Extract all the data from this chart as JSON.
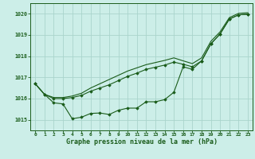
{
  "xlabel": "Graphe pression niveau de la mer (hPa)",
  "bg_color": "#cceee8",
  "grid_color": "#aad4cc",
  "line_color": "#1a5c1a",
  "xlim": [
    -0.5,
    23.5
  ],
  "ylim": [
    1014.5,
    1020.5
  ],
  "yticks": [
    1015,
    1016,
    1017,
    1018,
    1019,
    1020
  ],
  "xticks": [
    0,
    1,
    2,
    3,
    4,
    5,
    6,
    7,
    8,
    9,
    10,
    11,
    12,
    13,
    14,
    15,
    16,
    17,
    18,
    19,
    20,
    21,
    22,
    23
  ],
  "y_bottom": [
    1016.7,
    1016.2,
    1015.8,
    1015.75,
    1015.05,
    1015.12,
    1015.3,
    1015.32,
    1015.25,
    1015.45,
    1015.55,
    1015.55,
    1015.85,
    1015.85,
    1015.95,
    1016.3,
    1017.5,
    1017.38,
    1017.78,
    1018.58,
    1019.05,
    1019.75,
    1019.95,
    1019.98
  ],
  "y_upper1": [
    1016.7,
    1016.2,
    1016.0,
    1016.0,
    1016.05,
    1016.15,
    1016.35,
    1016.5,
    1016.65,
    1016.85,
    1017.05,
    1017.2,
    1017.38,
    1017.48,
    1017.58,
    1017.72,
    1017.62,
    1017.5,
    1017.78,
    1018.58,
    1019.05,
    1019.75,
    1019.95,
    1019.98
  ],
  "y_upper2": [
    1016.7,
    1016.2,
    1016.05,
    1016.05,
    1016.12,
    1016.25,
    1016.5,
    1016.7,
    1016.9,
    1017.1,
    1017.3,
    1017.45,
    1017.6,
    1017.7,
    1017.8,
    1017.92,
    1017.78,
    1017.65,
    1017.92,
    1018.7,
    1019.15,
    1019.82,
    1020.02,
    1020.05
  ]
}
